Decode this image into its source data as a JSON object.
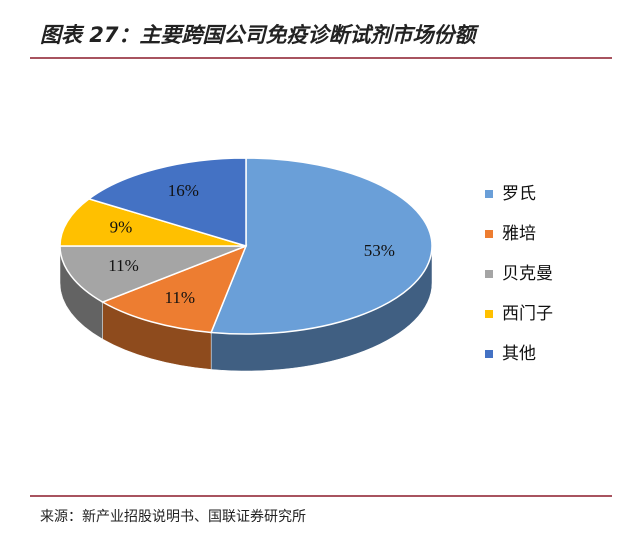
{
  "chart_data": {
    "type": "pie",
    "title": "图表 27：主要跨国公司免疫诊断试剂市场份额",
    "categories": [
      "罗氏",
      "雅培",
      "贝克曼",
      "西门子",
      "其他"
    ],
    "values": [
      53,
      11,
      11,
      9,
      16
    ],
    "value_labels": [
      "53%",
      "11%",
      "11%",
      "9%",
      "16%"
    ],
    "colors": [
      "#6a9fd8",
      "#ed7d31",
      "#a5a5a5",
      "#ffc000",
      "#4472c4"
    ],
    "legend": "right",
    "source": "来源：新产业招股说明书、国联证券研究所"
  }
}
